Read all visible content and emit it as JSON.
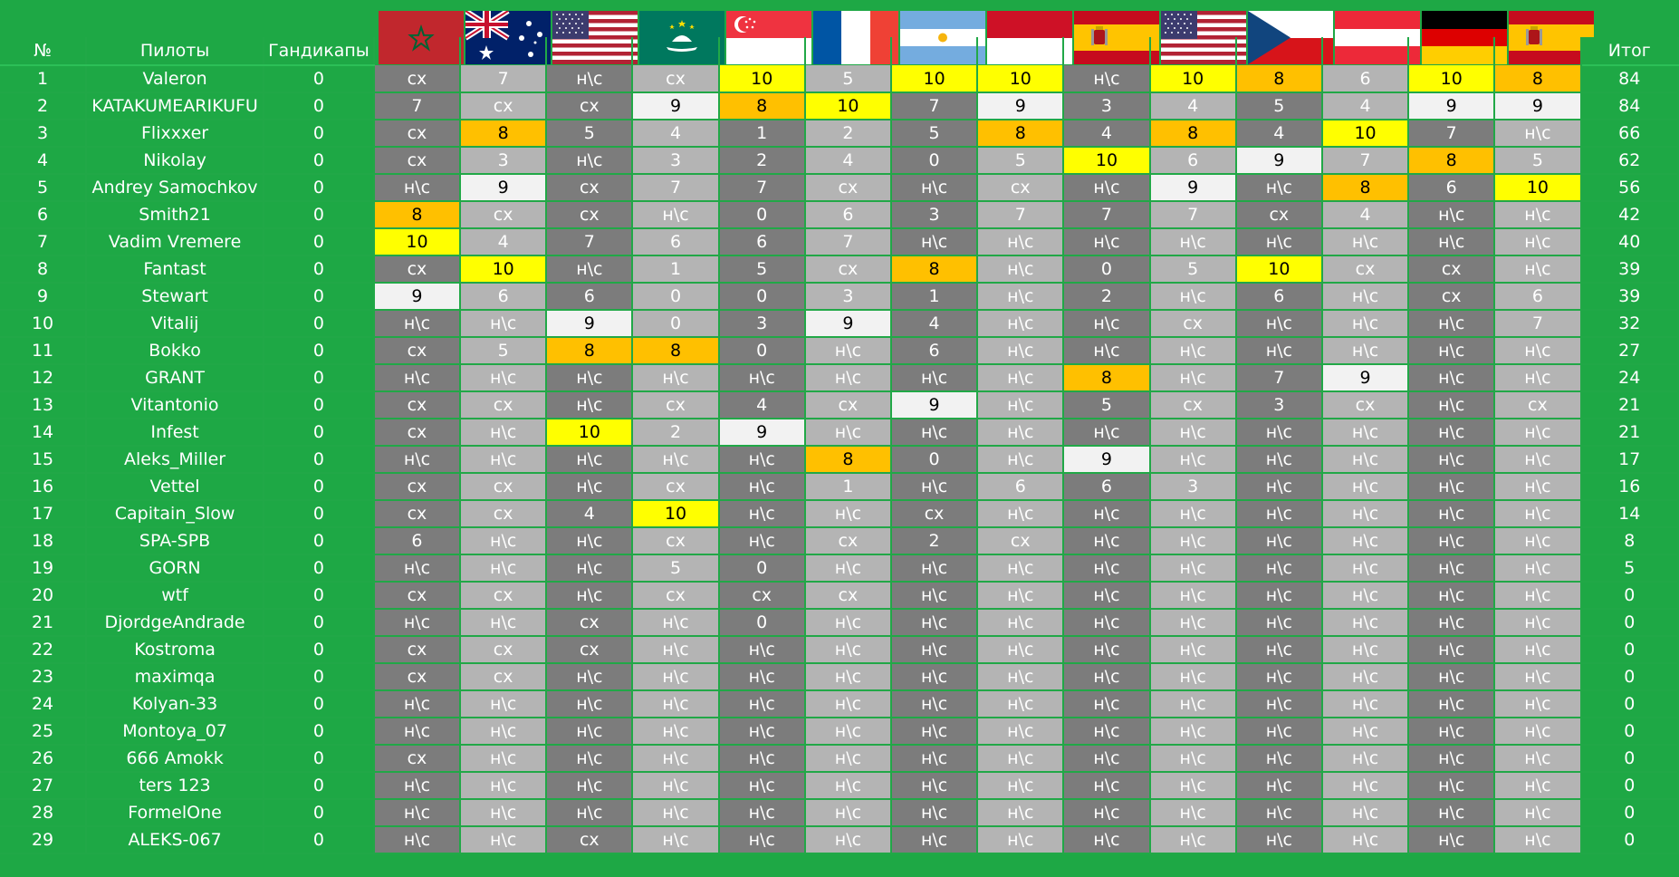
{
  "header": {
    "num": "№",
    "pilots": "Пилоты",
    "handicaps": "Гандикапы",
    "total": "Итог"
  },
  "flags": [
    "morocco-flag",
    "australia-flag",
    "usa-flag",
    "macau-flag",
    "singapore-flag",
    "france-flag",
    "argentina-flag",
    "indonesia-flag",
    "spain-flag",
    "usa-flag",
    "czech-flag",
    "austria-flag",
    "germany-flag",
    "spain-flag"
  ],
  "colors": {
    "background": "#1ea845",
    "dark_cell": "#7c7c7c",
    "light_cell": "#b4b4b4",
    "first": "#ffff00",
    "second": "#ffc000",
    "third": "#f2f2f2"
  },
  "rows": [
    {
      "num": "1",
      "name": "Valeron",
      "hc": "0",
      "cells": [
        "сх",
        "7",
        "н\\с",
        "сх",
        "10",
        "5",
        "10",
        "10",
        "н\\с",
        "10",
        "8",
        "6",
        "10",
        "8"
      ],
      "total": "84"
    },
    {
      "num": "2",
      "name": "KATAKUMEARIKUFU",
      "hc": "0",
      "cells": [
        "7",
        "сх",
        "сх",
        "9",
        "8",
        "10",
        "7",
        "9",
        "3",
        "4",
        "5",
        "4",
        "9",
        "9"
      ],
      "total": "84"
    },
    {
      "num": "3",
      "name": "Flixxxer",
      "hc": "0",
      "cells": [
        "сх",
        "8",
        "5",
        "4",
        "1",
        "2",
        "5",
        "8",
        "4",
        "8",
        "4",
        "10",
        "7",
        "н\\с"
      ],
      "total": "66"
    },
    {
      "num": "4",
      "name": "Nikolay",
      "hc": "0",
      "cells": [
        "сх",
        "3",
        "н\\с",
        "3",
        "2",
        "4",
        "0",
        "5",
        "10",
        "6",
        "9",
        "7",
        "8",
        "5"
      ],
      "total": "62"
    },
    {
      "num": "5",
      "name": "Andrey Samochkov",
      "hc": "0",
      "cells": [
        "н\\с",
        "9",
        "сх",
        "7",
        "7",
        "сх",
        "н\\с",
        "сх",
        "н\\с",
        "9",
        "н\\с",
        "8",
        "6",
        "10"
      ],
      "total": "56"
    },
    {
      "num": "6",
      "name": "Smith21",
      "hc": "0",
      "cells": [
        "8",
        "сх",
        "сх",
        "н\\с",
        "0",
        "6",
        "3",
        "7",
        "7",
        "7",
        "сх",
        "4",
        "н\\с",
        "н\\с"
      ],
      "total": "42"
    },
    {
      "num": "7",
      "name": "Vadim Vremere",
      "hc": "0",
      "cells": [
        "10",
        "4",
        "7",
        "6",
        "6",
        "7",
        "н\\с",
        "н\\с",
        "н\\с",
        "н\\с",
        "н\\с",
        "н\\с",
        "н\\с",
        "н\\с"
      ],
      "total": "40"
    },
    {
      "num": "8",
      "name": "Fantast",
      "hc": "0",
      "cells": [
        "сх",
        "10",
        "н\\с",
        "1",
        "5",
        "сх",
        "8",
        "н\\с",
        "0",
        "5",
        "10",
        "сх",
        "сх",
        "н\\с"
      ],
      "total": "39"
    },
    {
      "num": "9",
      "name": "Stewart",
      "hc": "0",
      "cells": [
        "9",
        "6",
        "6",
        "0",
        "0",
        "3",
        "1",
        "н\\с",
        "2",
        "н\\с",
        "6",
        "н\\с",
        "сх",
        "6"
      ],
      "total": "39"
    },
    {
      "num": "10",
      "name": "Vitalij",
      "hc": "0",
      "cells": [
        "н\\с",
        "н\\с",
        "9",
        "0",
        "3",
        "9",
        "4",
        "н\\с",
        "н\\с",
        "сх",
        "н\\с",
        "н\\с",
        "н\\с",
        "7"
      ],
      "total": "32"
    },
    {
      "num": "11",
      "name": "Bokko",
      "hc": "0",
      "cells": [
        "сх",
        "5",
        "8",
        "8",
        "0",
        "н\\с",
        "6",
        "н\\с",
        "н\\с",
        "н\\с",
        "н\\с",
        "н\\с",
        "н\\с",
        "н\\с"
      ],
      "total": "27"
    },
    {
      "num": "12",
      "name": "GRANT",
      "hc": "0",
      "cells": [
        "н\\с",
        "н\\с",
        "н\\с",
        "н\\с",
        "н\\с",
        "н\\с",
        "н\\с",
        "н\\с",
        "8",
        "н\\с",
        "7",
        "9",
        "н\\с",
        "н\\с"
      ],
      "total": "24"
    },
    {
      "num": "13",
      "name": "Vitantonio",
      "hc": "0",
      "cells": [
        "сх",
        "сх",
        "н\\с",
        "сх",
        "4",
        "сх",
        "9",
        "н\\с",
        "5",
        "сх",
        "3",
        "сх",
        "н\\с",
        "сх"
      ],
      "total": "21"
    },
    {
      "num": "14",
      "name": "Infest",
      "hc": "0",
      "cells": [
        "сх",
        "н\\с",
        "10",
        "2",
        "9",
        "н\\с",
        "н\\с",
        "н\\с",
        "н\\с",
        "н\\с",
        "н\\с",
        "н\\с",
        "н\\с",
        "н\\с"
      ],
      "total": "21"
    },
    {
      "num": "15",
      "name": "Aleks_Miller",
      "hc": "0",
      "cells": [
        "н\\с",
        "н\\с",
        "н\\с",
        "н\\с",
        "н\\с",
        "8",
        "0",
        "н\\с",
        "9",
        "н\\с",
        "н\\с",
        "н\\с",
        "н\\с",
        "н\\с"
      ],
      "total": "17"
    },
    {
      "num": "16",
      "name": "Vettel",
      "hc": "0",
      "cells": [
        "сх",
        "сх",
        "н\\с",
        "сх",
        "н\\с",
        "1",
        "н\\с",
        "6",
        "6",
        "3",
        "н\\с",
        "н\\с",
        "н\\с",
        "н\\с"
      ],
      "total": "16"
    },
    {
      "num": "17",
      "name": "Capitain_Slow",
      "hc": "0",
      "cells": [
        "сх",
        "сх",
        "4",
        "10",
        "н\\с",
        "н\\с",
        "сх",
        "н\\с",
        "н\\с",
        "н\\с",
        "н\\с",
        "н\\с",
        "н\\с",
        "н\\с"
      ],
      "total": "14"
    },
    {
      "num": "18",
      "name": "SPA-SPB",
      "hc": "0",
      "cells": [
        "6",
        "н\\с",
        "н\\с",
        "сх",
        "н\\с",
        "сх",
        "2",
        "сх",
        "н\\с",
        "н\\с",
        "н\\с",
        "н\\с",
        "н\\с",
        "н\\с"
      ],
      "total": "8"
    },
    {
      "num": "19",
      "name": "GORN",
      "hc": "0",
      "cells": [
        "н\\с",
        "н\\с",
        "н\\с",
        "5",
        "0",
        "н\\с",
        "н\\с",
        "н\\с",
        "н\\с",
        "н\\с",
        "н\\с",
        "н\\с",
        "н\\с",
        "н\\с"
      ],
      "total": "5"
    },
    {
      "num": "20",
      "name": "wtf",
      "hc": "0",
      "cells": [
        "сх",
        "сх",
        "н\\с",
        "сх",
        "сх",
        "сх",
        "н\\с",
        "н\\с",
        "н\\с",
        "н\\с",
        "н\\с",
        "н\\с",
        "н\\с",
        "н\\с"
      ],
      "total": "0"
    },
    {
      "num": "21",
      "name": "DjordgeAndrade",
      "hc": "0",
      "cells": [
        "н\\с",
        "н\\с",
        "сх",
        "н\\с",
        "0",
        "н\\с",
        "н\\с",
        "н\\с",
        "н\\с",
        "н\\с",
        "н\\с",
        "н\\с",
        "н\\с",
        "н\\с"
      ],
      "total": "0"
    },
    {
      "num": "22",
      "name": "Kostroma",
      "hc": "0",
      "cells": [
        "сх",
        "сх",
        "сх",
        "н\\с",
        "н\\с",
        "н\\с",
        "н\\с",
        "н\\с",
        "н\\с",
        "н\\с",
        "н\\с",
        "н\\с",
        "н\\с",
        "н\\с"
      ],
      "total": "0"
    },
    {
      "num": "23",
      "name": "maximqa",
      "hc": "0",
      "cells": [
        "сх",
        "сх",
        "н\\с",
        "н\\с",
        "н\\с",
        "н\\с",
        "н\\с",
        "н\\с",
        "н\\с",
        "н\\с",
        "н\\с",
        "н\\с",
        "н\\с",
        "н\\с"
      ],
      "total": "0"
    },
    {
      "num": "24",
      "name": "Kolyan-33",
      "hc": "0",
      "cells": [
        "н\\с",
        "н\\с",
        "н\\с",
        "н\\с",
        "н\\с",
        "н\\с",
        "н\\с",
        "н\\с",
        "н\\с",
        "н\\с",
        "н\\с",
        "н\\с",
        "н\\с",
        "н\\с"
      ],
      "total": "0"
    },
    {
      "num": "25",
      "name": "Montoya_07",
      "hc": "0",
      "cells": [
        "н\\с",
        "н\\с",
        "н\\с",
        "н\\с",
        "н\\с",
        "н\\с",
        "н\\с",
        "н\\с",
        "н\\с",
        "н\\с",
        "н\\с",
        "н\\с",
        "н\\с",
        "н\\с"
      ],
      "total": "0"
    },
    {
      "num": "26",
      "name": "666 Amokk",
      "hc": "0",
      "cells": [
        "сх",
        "н\\с",
        "н\\с",
        "н\\с",
        "н\\с",
        "н\\с",
        "н\\с",
        "н\\с",
        "н\\с",
        "н\\с",
        "н\\с",
        "н\\с",
        "н\\с",
        "н\\с"
      ],
      "total": "0"
    },
    {
      "num": "27",
      "name": "ters 123",
      "hc": "0",
      "cells": [
        "н\\с",
        "н\\с",
        "н\\с",
        "н\\с",
        "н\\с",
        "н\\с",
        "н\\с",
        "н\\с",
        "н\\с",
        "н\\с",
        "н\\с",
        "н\\с",
        "н\\с",
        "н\\с"
      ],
      "total": "0"
    },
    {
      "num": "28",
      "name": "FormelOne",
      "hc": "0",
      "cells": [
        "н\\с",
        "н\\с",
        "н\\с",
        "н\\с",
        "н\\с",
        "н\\с",
        "н\\с",
        "н\\с",
        "н\\с",
        "н\\с",
        "н\\с",
        "н\\с",
        "н\\с",
        "н\\с"
      ],
      "total": "0"
    },
    {
      "num": "29",
      "name": "ALEKS-067",
      "hc": "0",
      "cells": [
        "н\\с",
        "н\\с",
        "сх",
        "н\\с",
        "н\\с",
        "н\\с",
        "н\\с",
        "н\\с",
        "н\\с",
        "н\\с",
        "н\\с",
        "н\\с",
        "н\\с",
        "н\\с"
      ],
      "total": "0"
    }
  ]
}
